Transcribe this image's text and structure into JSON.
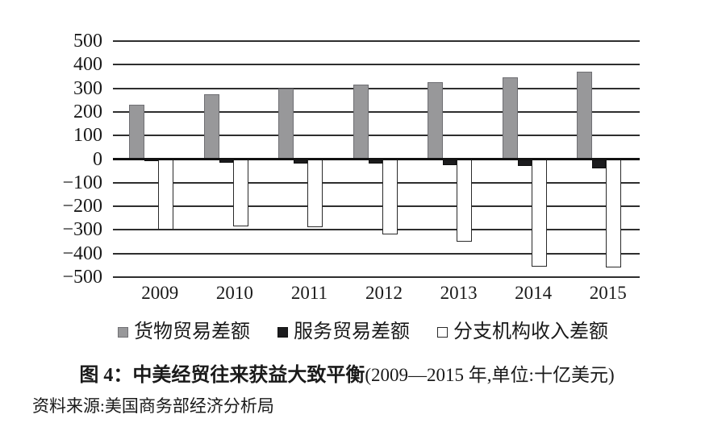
{
  "figure": {
    "caption_label": "图 4：",
    "caption_title": "中美经贸往来获益大致平衡",
    "caption_note": "(2009—2015 年,单位:十亿美元)",
    "source_text": "资料来源:美国商务部经济分析局"
  },
  "chart_data": {
    "type": "bar",
    "title": "中美经贸往来获益大致平衡",
    "period": "2009—2015 年",
    "unit": "十亿美元",
    "categories": [
      "2009",
      "2010",
      "2011",
      "2012",
      "2013",
      "2014",
      "2015"
    ],
    "series": [
      {
        "id": "goods-trade-balance",
        "name": "货物贸易差额",
        "color": "#98989a",
        "values": [
          230,
          275,
          300,
          315,
          325,
          345,
          370
        ]
      },
      {
        "id": "services-trade-balance",
        "name": "服务贸易差额",
        "color": "#1c1c1e",
        "values": [
          -10,
          -15,
          -20,
          -20,
          -25,
          -30,
          -40
        ]
      },
      {
        "id": "branch-income-balance",
        "name": "分支机构收入差额",
        "color": "#ffffff",
        "values": [
          -300,
          -285,
          -290,
          -320,
          -350,
          -455,
          -460
        ]
      }
    ],
    "ylim": [
      -500,
      500
    ],
    "y_ticks": [
      {
        "value": 500,
        "label": "500"
      },
      {
        "value": 400,
        "label": "400"
      },
      {
        "value": 300,
        "label": "300"
      },
      {
        "value": 200,
        "label": "200"
      },
      {
        "value": 100,
        "label": "100"
      },
      {
        "value": 0,
        "label": "0"
      },
      {
        "value": -100,
        "label": "−100"
      },
      {
        "value": -200,
        "label": "−200"
      },
      {
        "value": -300,
        "label": "−300"
      },
      {
        "value": -400,
        "label": "−400"
      },
      {
        "value": -500,
        "label": "−500"
      }
    ],
    "grid": true,
    "legend_position": "bottom"
  }
}
